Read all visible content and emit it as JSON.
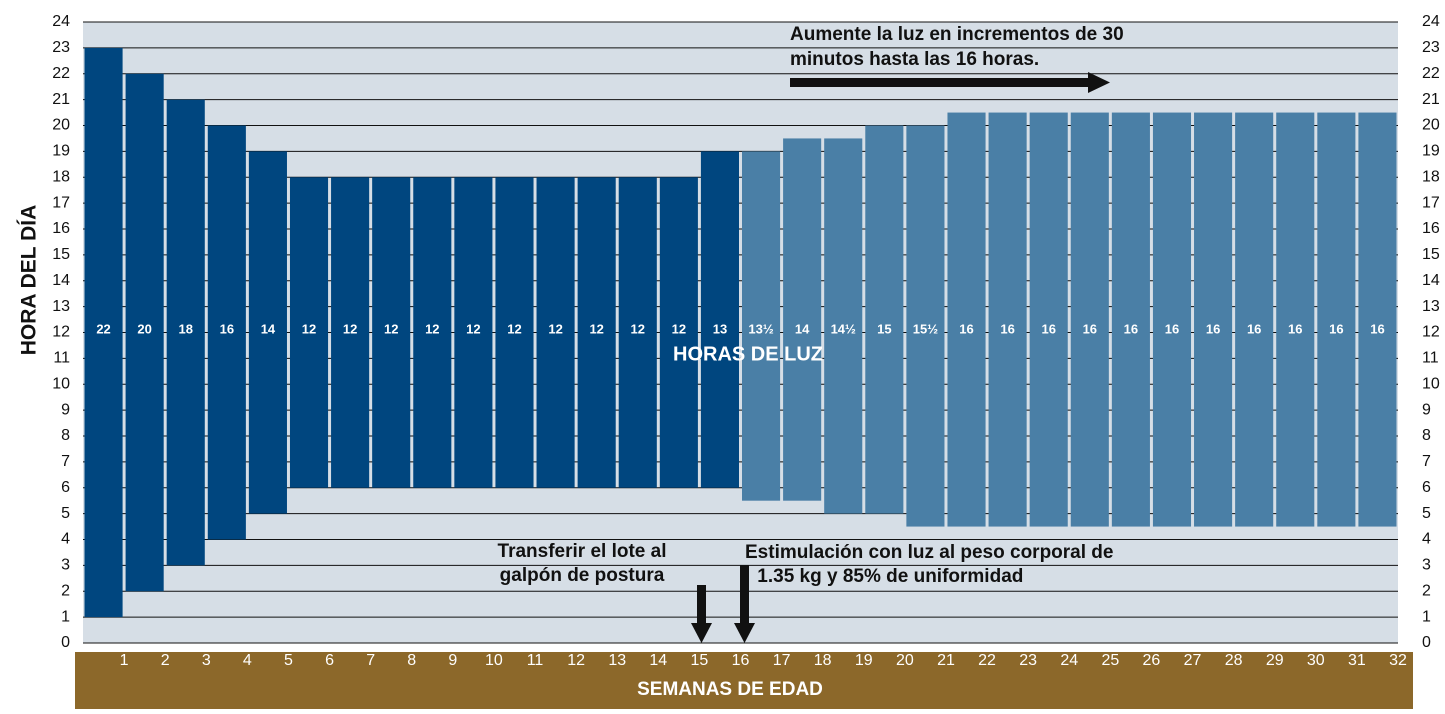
{
  "chart_data": {
    "type": "floating-bar",
    "xlabel": "SEMANAS DE EDAD",
    "ylabel": "HORA DEL DÍA",
    "center_label": "HORAS DE LUZ",
    "ylim": [
      0,
      24
    ],
    "yticks": [
      0,
      1,
      2,
      3,
      4,
      5,
      6,
      7,
      8,
      9,
      10,
      11,
      12,
      13,
      14,
      15,
      16,
      17,
      18,
      19,
      20,
      21,
      22,
      23,
      24
    ],
    "xlim": [
      0,
      32
    ],
    "xticks": [
      1,
      2,
      3,
      4,
      5,
      6,
      7,
      8,
      9,
      10,
      11,
      12,
      13,
      14,
      15,
      16,
      17,
      18,
      19,
      20,
      21,
      22,
      23,
      24,
      25,
      26,
      27,
      28,
      29,
      30,
      31,
      32
    ],
    "grid": true,
    "low": [
      1,
      2,
      3,
      4,
      5,
      6,
      6,
      6,
      6,
      6,
      6,
      6,
      6,
      6,
      6,
      6,
      5.5,
      5.5,
      5,
      5,
      4.5,
      4.5,
      4.5,
      4.5,
      4.5,
      4.5,
      4.5,
      4.5,
      4.5,
      4.5,
      4.5,
      4.5
    ],
    "high": [
      23,
      22,
      21,
      20,
      19,
      18,
      18,
      18,
      18,
      18,
      18,
      18,
      18,
      18,
      18,
      19,
      19,
      19.5,
      19.5,
      20,
      20,
      20.5,
      20.5,
      20.5,
      20.5,
      20.5,
      20.5,
      20.5,
      20.5,
      20.5,
      20.5,
      20.5
    ],
    "values": [
      22,
      20,
      18,
      16,
      14,
      12,
      12,
      12,
      12,
      12,
      12,
      12,
      12,
      12,
      12,
      13,
      13.5,
      14,
      14.5,
      15,
      15.5,
      16,
      16,
      16,
      16,
      16,
      16,
      16,
      16,
      16,
      16,
      16
    ],
    "value_labels": [
      "22",
      "20",
      "18",
      "16",
      "14",
      "12",
      "12",
      "12",
      "12",
      "12",
      "12",
      "12",
      "12",
      "12",
      "12",
      "13",
      "13½",
      "14",
      "14½",
      "15",
      "15½",
      "16",
      "16",
      "16",
      "16",
      "16",
      "16",
      "16",
      "16",
      "16",
      "16",
      "16"
    ],
    "colors": [
      "#00467f",
      "#00467f",
      "#00467f",
      "#00467f",
      "#00467f",
      "#00467f",
      "#00467f",
      "#00467f",
      "#00467f",
      "#00467f",
      "#00467f",
      "#00467f",
      "#00467f",
      "#00467f",
      "#00467f",
      "#00467f",
      "#4a7fa6",
      "#4a7fa6",
      "#4a7fa6",
      "#4a7fa6",
      "#4a7fa6",
      "#4a7fa6",
      "#4a7fa6",
      "#4a7fa6",
      "#4a7fa6",
      "#4a7fa6",
      "#4a7fa6",
      "#4a7fa6",
      "#4a7fa6",
      "#4a7fa6",
      "#4a7fa6",
      "#4a7fa6"
    ],
    "annotations": [
      {
        "lines": [
          "Aumente la luz en incrementos de 30",
          "minutos hasta las 16 horas."
        ]
      },
      {
        "lines": [
          "Transferir el lote al",
          "galpón de postura"
        ]
      },
      {
        "lines": [
          "Estimulación con luz al peso corporal de",
          " 1.35 kg y 85% de uniformidad"
        ]
      }
    ]
  }
}
